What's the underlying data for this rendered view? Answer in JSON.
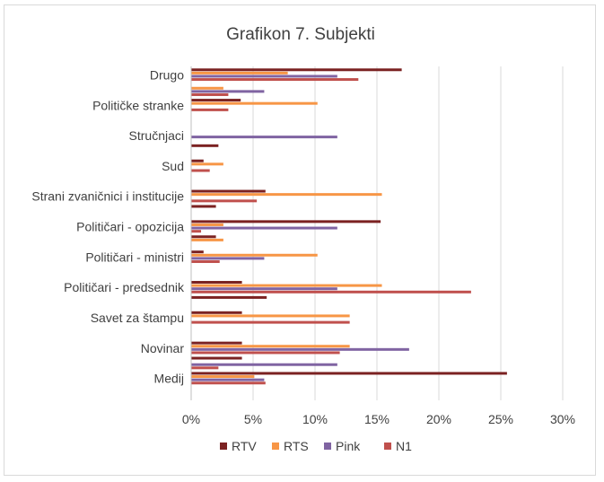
{
  "chart_data": {
    "type": "bar",
    "orientation": "horizontal",
    "title": "Grafikon 7. Subjekti",
    "xlabel": "",
    "ylabel": "",
    "xlim": [
      0,
      0.3
    ],
    "xticks": [
      0,
      0.05,
      0.1,
      0.15,
      0.2,
      0.25,
      0.3
    ],
    "xtick_labels": [
      "0%",
      "5%",
      "10%",
      "15%",
      "20%",
      "25%",
      "30%"
    ],
    "grid": "vertical",
    "legend_position": "bottom",
    "categories": [
      "Drugo",
      "Političke stranke",
      "Stručnjaci",
      "Sud",
      "Strani zvaničnici i institucije",
      "Političari - opozicija",
      "Političari - ministri",
      "Političari - predsednik",
      "Savet za štampu",
      "Novinar",
      "Medij"
    ],
    "series": [
      {
        "name": "RTV",
        "color": "#7b2222",
        "values": [
          0.17,
          0.04,
          0.0,
          0.01,
          0.06,
          0.153,
          0.01,
          0.041,
          0.041,
          0.041,
          0.255
        ]
      },
      {
        "name": "RTS",
        "color": "#f79646",
        "values": [
          0.078,
          0.102,
          0.0,
          0.026,
          0.154,
          0.026,
          0.102,
          0.154,
          0.128,
          0.128,
          0.051
        ]
      },
      {
        "name": "Pink",
        "color": "#8064a2",
        "values": [
          0.118,
          0.0,
          0.118,
          0.0,
          0.0,
          0.118,
          0.059,
          0.118,
          0.0,
          0.176,
          0.059
        ]
      },
      {
        "name": "N1",
        "color": "#c0504d",
        "values": [
          0.135,
          0.03,
          0.0,
          0.015,
          0.053,
          0.008,
          0.023,
          0.226,
          0.128,
          0.12,
          0.06
        ]
      }
    ],
    "extra_bars": [
      {
        "between": [
          "Drugo",
          "Političke stranke"
        ],
        "values": [
          0.0,
          0.026,
          0.059,
          0.03
        ]
      },
      {
        "between": [
          "Političke stranke",
          "Stručnjaci"
        ],
        "values": [
          0.0,
          0.0,
          0.0,
          0.0
        ]
      },
      {
        "between": [
          "Stručnjaci",
          "Sud"
        ],
        "values": [
          0.022,
          0.0,
          0.0,
          0.0
        ]
      },
      {
        "between": [
          "Sud",
          "Strani zvaničnici i institucije"
        ],
        "values": [
          0.0,
          0.0,
          0.0,
          0.0
        ]
      },
      {
        "between": [
          "Strani zvaničnici i institucije",
          "Političari - opozicija"
        ],
        "values": [
          0.02,
          0.0,
          0.0,
          0.0
        ]
      },
      {
        "between": [
          "Političari - opozicija",
          "Političari - ministri"
        ],
        "values": [
          0.02,
          0.026,
          0.0,
          0.0
        ]
      },
      {
        "between": [
          "Političari - ministri",
          "Političari - predsednik"
        ],
        "values": [
          0.0,
          0.0,
          0.0,
          0.0
        ]
      },
      {
        "between": [
          "Političari - predsednik",
          "Savet za štampu"
        ],
        "values": [
          0.061,
          0.0,
          0.0,
          0.0
        ]
      },
      {
        "between": [
          "Savet za štampu",
          "Novinar"
        ],
        "values": [
          0.0,
          0.0,
          0.0,
          0.0
        ]
      },
      {
        "between": [
          "Novinar",
          "Medij"
        ],
        "values": [
          0.041,
          0.0,
          0.118,
          0.022
        ]
      }
    ]
  }
}
